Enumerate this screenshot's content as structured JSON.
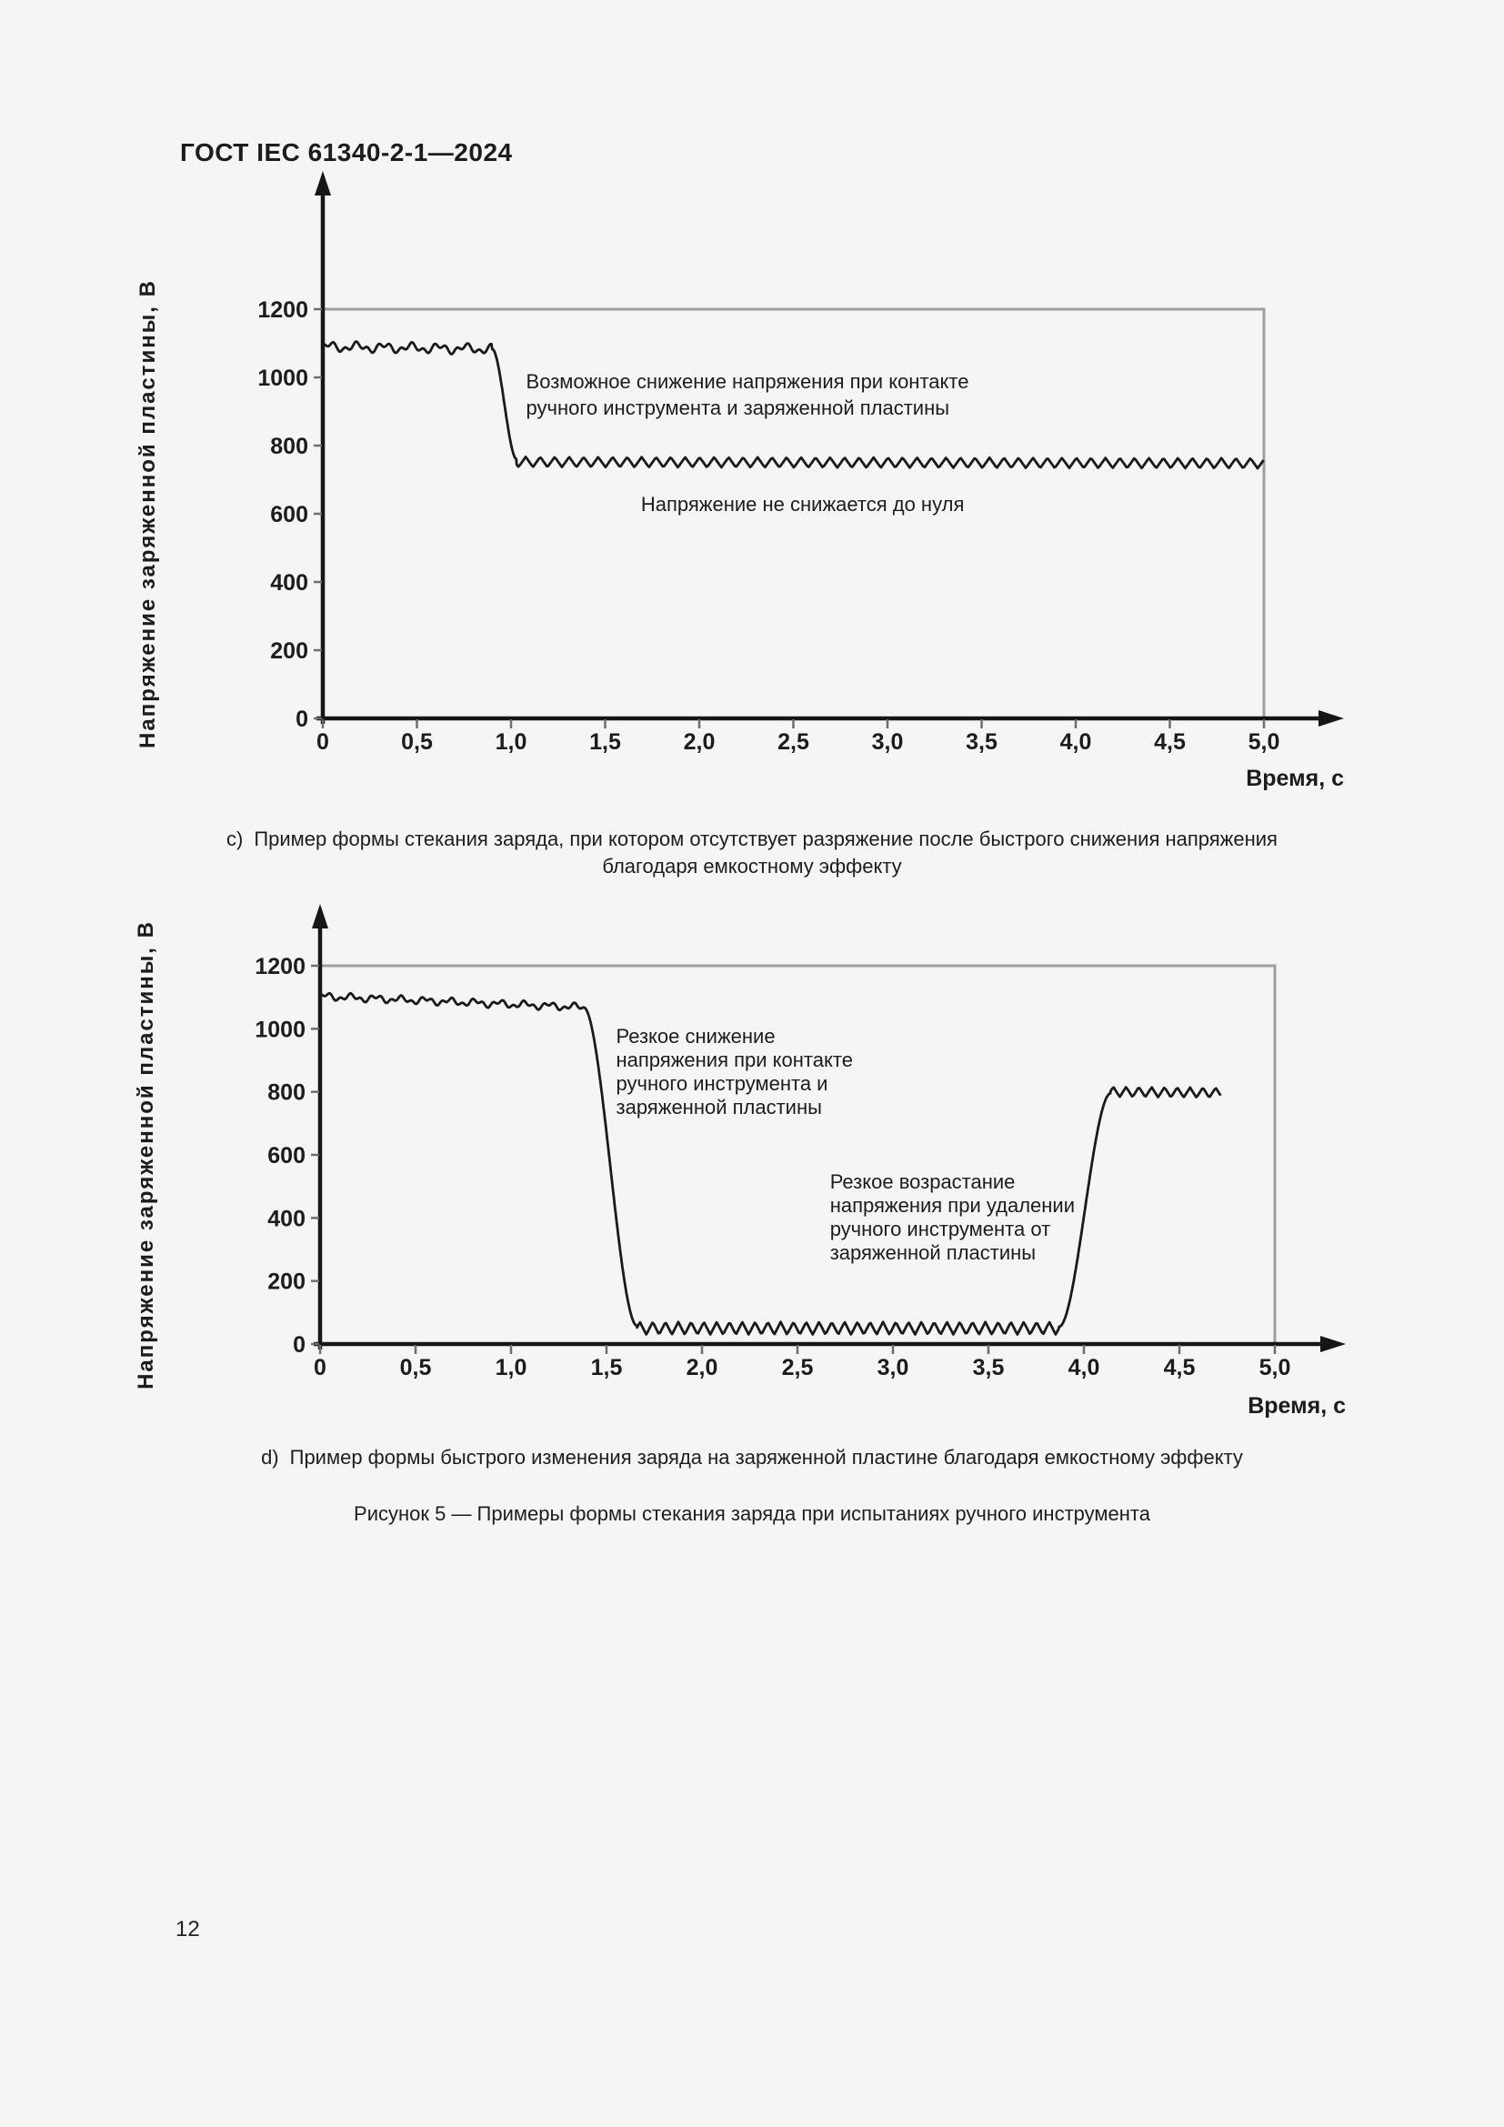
{
  "page": {
    "header_code": "ГОСТ IEC 61340-2-1—2024",
    "page_number": "12",
    "background": "#f5f5f3"
  },
  "figure": {
    "caption": "Рисунок 5 — Примеры формы стекания заряда при испытаниях ручного инструмента",
    "sub_captions": {
      "c": {
        "prefix": "c)",
        "line1": "Пример формы стекания заряда, при котором отсутствует разряжение после быстрого снижения напряжения",
        "line2": "благодаря емкостному эффекту"
      },
      "d": {
        "prefix": "d)",
        "line1": "Пример формы быстрого изменения заряда на заряженной пластине благодаря емкостному эффекту"
      }
    }
  },
  "chart_data": [
    {
      "id": "chart-c",
      "type": "line",
      "title": "",
      "xlabel": "Время, с",
      "ylabel": "Напряжение заряженной пластины, В",
      "xlim": [
        0,
        5.0
      ],
      "ylim": [
        0,
        1200
      ],
      "grid": "single gray gridline at 1200 V and right frame border at t=5.0",
      "legend_position": "none",
      "x_ticks": [
        0,
        0.5,
        1.0,
        1.5,
        2.0,
        2.5,
        3.0,
        3.5,
        4.0,
        4.5,
        5.0
      ],
      "x_tick_labels": [
        "0",
        "0,5",
        "1,0",
        "1,5",
        "2,0",
        "2,5",
        "3,0",
        "3,5",
        "4,0",
        "4,5",
        "5,0"
      ],
      "y_ticks": [
        0,
        200,
        400,
        600,
        800,
        1000,
        1200
      ],
      "frame_color": "#9e9e9e",
      "line_color": "#1a1a1a",
      "series": [
        {
          "name": "Напряжение заряженной пластины",
          "segments": [
            {
              "kind": "noisy",
              "style": "wobble",
              "t": [
                0.0,
                0.9
              ],
              "v": [
                1090,
                1083
              ],
              "amp": 17,
              "period": 0.145
            },
            {
              "kind": "ramp",
              "t": [
                0.9,
                1.03
              ],
              "v": [
                1083,
                760
              ]
            },
            {
              "kind": "noisy",
              "style": "zigzag",
              "t": [
                1.03,
                5.0
              ],
              "v": [
                752,
                748
              ],
              "amp": 15,
              "period": 0.077
            }
          ]
        }
      ],
      "annotations": [
        {
          "x": 1.08,
          "y": 968,
          "lines": [
            "Возможное снижение напряжения при контакте",
            "ручного инструмента и заряженной пластины"
          ]
        },
        {
          "x": 1.69,
          "y": 608,
          "lines": [
            "Напряжение не снижается до нуля"
          ]
        }
      ]
    },
    {
      "id": "chart-d",
      "type": "line",
      "title": "",
      "xlabel": "Время, с",
      "ylabel": "Напряжение заряженной пластины, В",
      "xlim": [
        0,
        5.0
      ],
      "ylim": [
        0,
        1200
      ],
      "grid": "single gray gridline at 1200 V and right frame border at t=5.0",
      "legend_position": "none",
      "x_ticks": [
        0,
        0.5,
        1.0,
        1.5,
        2.0,
        2.5,
        3.0,
        3.5,
        4.0,
        4.5,
        5.0
      ],
      "x_tick_labels": [
        "0",
        "0,5",
        "1,0",
        "1,5",
        "2,0",
        "2,5",
        "3,0",
        "3,5",
        "4,0",
        "4,5",
        "5,0"
      ],
      "y_ticks": [
        0,
        200,
        400,
        600,
        800,
        1000,
        1200
      ],
      "frame_color": "#9e9e9e",
      "line_color": "#1a1a1a",
      "series": [
        {
          "name": "Напряжение заряженной пластины",
          "segments": [
            {
              "kind": "noisy",
              "style": "wobble",
              "t": [
                0.0,
                1.38
              ],
              "v": [
                1103,
                1068
              ],
              "amp": 14,
              "period": 0.13
            },
            {
              "kind": "ramp",
              "t": [
                1.38,
                1.66
              ],
              "v": [
                1068,
                58
              ]
            },
            {
              "kind": "noisy",
              "style": "zigzag",
              "t": [
                1.66,
                3.87
              ],
              "v": [
                50,
                50
              ],
              "amp": 20,
              "period": 0.067
            },
            {
              "kind": "ramp",
              "t": [
                3.87,
                4.14
              ],
              "v": [
                55,
                795
              ]
            },
            {
              "kind": "noisy",
              "style": "zigzag",
              "t": [
                4.14,
                4.72
              ],
              "v": [
                800,
                797
              ],
              "amp": 16,
              "period": 0.067
            }
          ]
        }
      ],
      "annotations": [
        {
          "x": 1.55,
          "y": 955,
          "lines": [
            "Резкое снижение",
            "напряжения при контакте",
            "ручного инструмента и",
            "заряженной пластины"
          ]
        },
        {
          "x": 2.67,
          "y": 493,
          "lines": [
            "Резкое возрастание",
            "напряжения при удалении",
            "ручного инструмента от",
            "заряженной пластины"
          ]
        }
      ]
    }
  ]
}
